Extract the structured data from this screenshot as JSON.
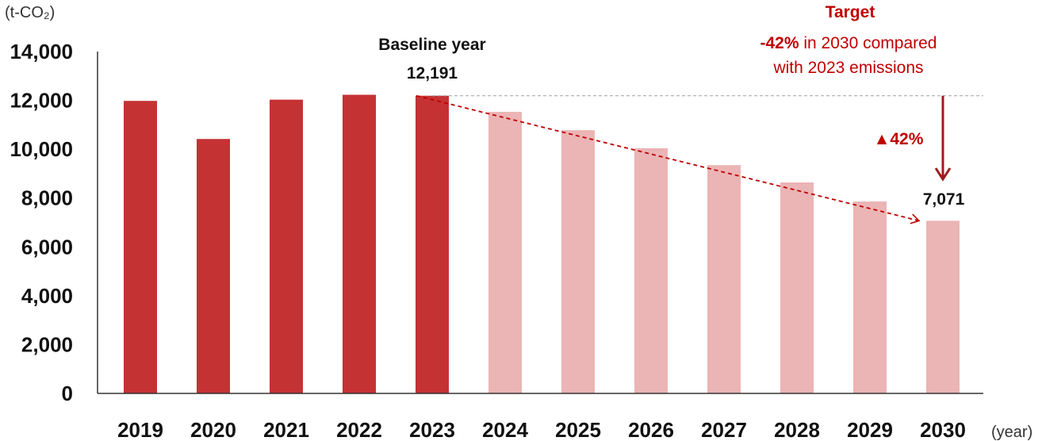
{
  "chart_data": {
    "type": "bar",
    "y_unit": "(t-CO₂)",
    "x_unit": "(year)",
    "ylim": [
      0,
      14000
    ],
    "yticks": [
      "0",
      "2,000",
      "4,000",
      "6,000",
      "8,000",
      "10,000",
      "12,000",
      "14,000"
    ],
    "ytick_values": [
      0,
      2000,
      4000,
      6000,
      8000,
      10000,
      12000,
      14000
    ],
    "categories": [
      "2019",
      "2020",
      "2021",
      "2022",
      "2023",
      "2024",
      "2025",
      "2026",
      "2027",
      "2028",
      "2029",
      "2030"
    ],
    "values": [
      11980,
      10420,
      12030,
      12230,
      12191,
      11530,
      10780,
      10040,
      9350,
      8640,
      7860,
      7071
    ],
    "actual_count": 5,
    "colors": {
      "actual": "#c53234",
      "projected": "#ebb4b5",
      "accent": "#c00000",
      "text": "#111111"
    },
    "annotations": {
      "baseline_label": "Baseline year",
      "baseline_value_label": "12,191",
      "target_value_label": "7,071",
      "reduction_label": "▲42%",
      "target_title": "Target",
      "target_pct": "-42%",
      "target_line1_rest": " in 2030 compared",
      "target_line2": "with 2023 emissions"
    },
    "grid": false,
    "legend": "none"
  }
}
